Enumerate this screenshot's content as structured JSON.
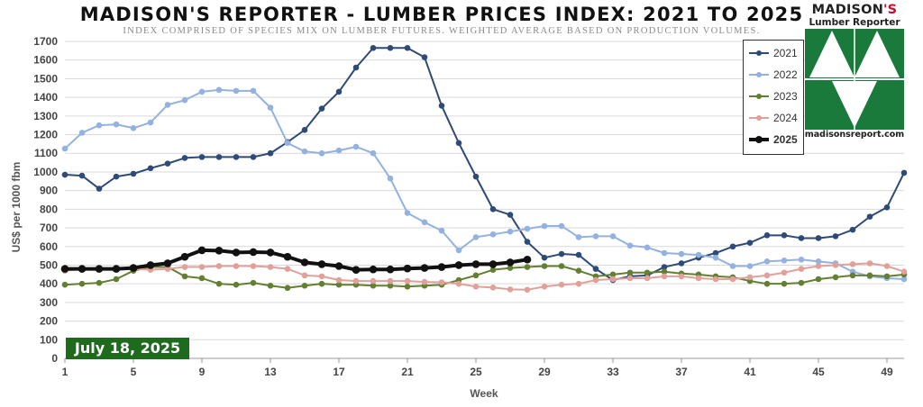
{
  "header": {
    "title": "MADISON'S REPORTER - LUMBER PRICES INDEX: 2021 TO 2025",
    "subtitle": "INDEX COMPRISED OF SPECIES MIX ON LUMBER FUTURES. WEIGHTED AVERAGE BASED ON PRODUCTION VOLUMES."
  },
  "logo": {
    "name_line1": "MADISON",
    "name_mark": "'S",
    "name_line2": "Lumber Reporter",
    "url": "madisonsreport.com",
    "green": "#1a7a3c"
  },
  "badge": {
    "date": "July 18, 2025",
    "color": "#1e6b1e"
  },
  "chart_data": {
    "type": "line",
    "xlabel": "Week",
    "ylabel": "US$ per 1000 fbm",
    "ylim": [
      0,
      1700
    ],
    "xlim": [
      1,
      50
    ],
    "yticks": [
      0,
      100,
      200,
      300,
      400,
      500,
      600,
      700,
      800,
      900,
      1000,
      1100,
      1200,
      1300,
      1400,
      1500,
      1600,
      1700
    ],
    "xticks": [
      1,
      5,
      9,
      13,
      17,
      21,
      25,
      29,
      33,
      37,
      41,
      45,
      49
    ],
    "grid": "horizontal",
    "legend_position": "top-right",
    "series": [
      {
        "name": "2021",
        "color": "#2e4a76",
        "width": 2,
        "values": [
          985,
          980,
          910,
          975,
          990,
          1020,
          1045,
          1075,
          1080,
          1080,
          1080,
          1080,
          1100,
          1160,
          1225,
          1340,
          1430,
          1560,
          1665,
          1665,
          1665,
          1615,
          1355,
          1155,
          975,
          800,
          770,
          625,
          540,
          560,
          555,
          480,
          420,
          440,
          445,
          490,
          510,
          540,
          565,
          600,
          620,
          660,
          660,
          645,
          645,
          655,
          690,
          760,
          810,
          995
        ]
      },
      {
        "name": "2022",
        "color": "#93b2e0",
        "width": 2,
        "values": [
          1125,
          1210,
          1250,
          1255,
          1235,
          1265,
          1360,
          1385,
          1430,
          1440,
          1435,
          1435,
          1345,
          1155,
          1110,
          1100,
          1115,
          1135,
          1100,
          965,
          780,
          730,
          685,
          580,
          650,
          665,
          680,
          695,
          710,
          710,
          650,
          655,
          655,
          605,
          595,
          565,
          560,
          555,
          540,
          495,
          495,
          520,
          525,
          530,
          520,
          510,
          465,
          440,
          430,
          425
        ]
      },
      {
        "name": "2023",
        "color": "#637f31",
        "width": 2,
        "values": [
          395,
          400,
          405,
          425,
          470,
          490,
          490,
          440,
          430,
          400,
          395,
          405,
          390,
          378,
          390,
          400,
          395,
          395,
          390,
          390,
          385,
          390,
          395,
          420,
          445,
          475,
          485,
          490,
          495,
          495,
          470,
          440,
          450,
          460,
          460,
          465,
          455,
          450,
          440,
          435,
          415,
          400,
          400,
          405,
          425,
          435,
          445,
          445,
          440,
          450
        ]
      },
      {
        "name": "2024",
        "color": "#e2a09a",
        "width": 2,
        "values": [
          470,
          480,
          480,
          480,
          480,
          475,
          480,
          490,
          490,
          495,
          495,
          495,
          490,
          480,
          445,
          440,
          420,
          415,
          415,
          415,
          415,
          410,
          408,
          400,
          385,
          380,
          370,
          368,
          385,
          395,
          400,
          420,
          425,
          430,
          430,
          440,
          440,
          430,
          425,
          425,
          435,
          445,
          460,
          480,
          495,
          500,
          505,
          510,
          495,
          465
        ]
      },
      {
        "name": "2025",
        "color": "#111111",
        "width": 4,
        "values": [
          480,
          480,
          480,
          480,
          485,
          500,
          510,
          545,
          580,
          578,
          568,
          570,
          568,
          545,
          515,
          505,
          495,
          475,
          477,
          477,
          482,
          485,
          490,
          500,
          505,
          505,
          515,
          530
        ]
      }
    ]
  }
}
